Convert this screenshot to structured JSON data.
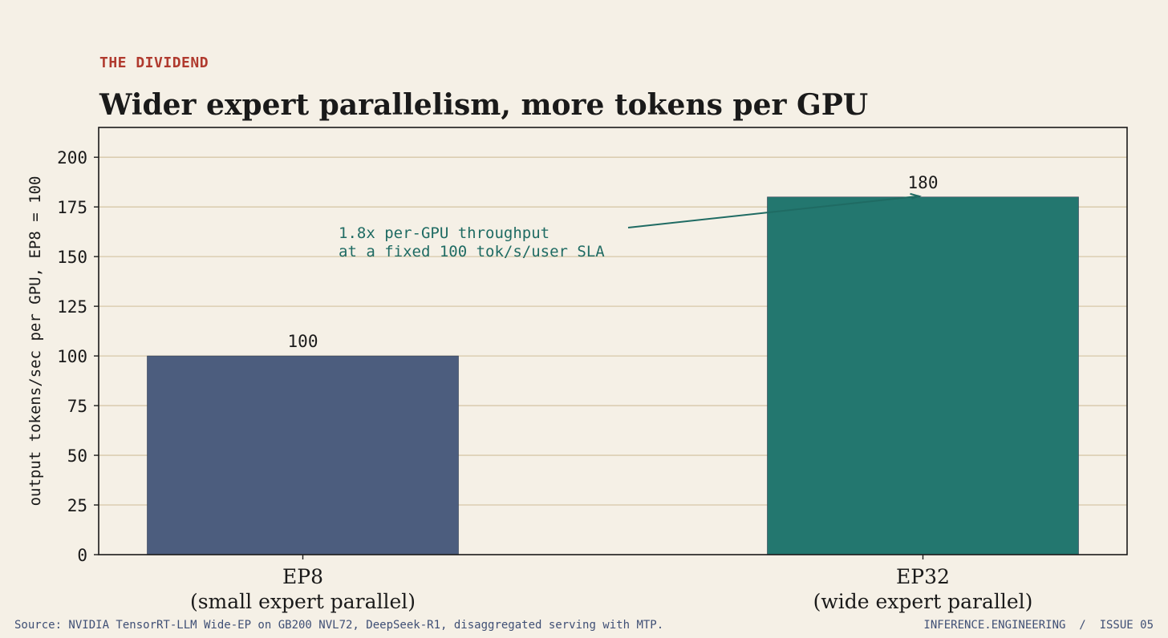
{
  "header": {
    "kicker": "THE DIVIDEND",
    "title": "Wider expert parallelism, more tokens per GPU"
  },
  "footer": {
    "source": "Source: NVIDIA TensorRT-LLM Wide-EP on GB200 NVL72, DeepSeek-R1, disaggregated serving with MTP.",
    "brand": "INFERENCE.ENGINEERING  /  ISSUE 05"
  },
  "colors": {
    "background": "#f5f0e6",
    "bar_ep8": "#4c5d7e",
    "bar_ep32": "#23776f",
    "grid": "#d6c7a8",
    "annotation": "#1f6b63",
    "kicker": "#b03a2e"
  },
  "chart_data": {
    "type": "bar",
    "categories": [
      "EP8\n(small expert parallel)",
      "EP32\n(wide expert parallel)"
    ],
    "values": [
      100,
      180
    ],
    "data_labels": [
      "100",
      "180"
    ],
    "ylabel": "output tokens/sec per GPU, EP8 = 100",
    "ylim": [
      0,
      215
    ],
    "yticks": [
      0,
      25,
      50,
      75,
      100,
      125,
      150,
      175,
      200
    ],
    "grid": true,
    "annotation": {
      "lines": [
        "1.8x per-GPU throughput",
        "at a fixed 100 tok/s/user SLA"
      ],
      "target_category": 1
    }
  }
}
